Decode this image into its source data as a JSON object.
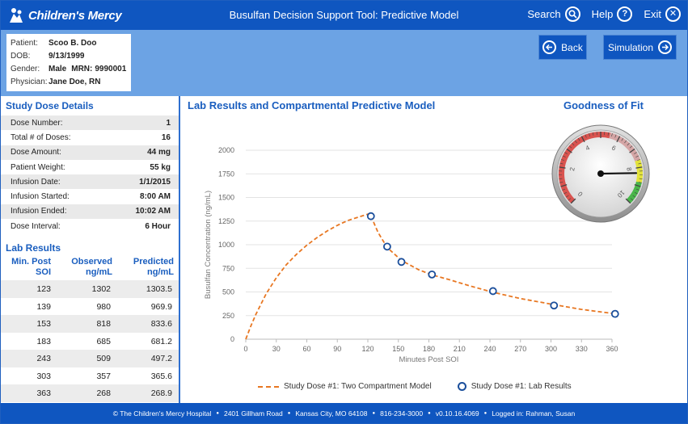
{
  "header": {
    "logo_text": "Children's Mercy",
    "title": "Busulfan Decision Support Tool: Predictive Model",
    "search_label": "Search",
    "help_label": "Help",
    "exit_label": "Exit"
  },
  "patient": {
    "patient_label": "Patient:",
    "patient_value": "Scoo B. Doo",
    "dob_label": "DOB:",
    "dob_value": "9/13/1999",
    "gender_label": "Gender:",
    "gender_value": "Male",
    "mrn_label": "MRN:",
    "mrn_value": "9990001",
    "physician_label": "Physician:",
    "physician_value": "Jane Doe, RN"
  },
  "nav": {
    "back_label": "Back",
    "simulation_label": "Simulation"
  },
  "study_dose": {
    "title": "Study Dose Details",
    "rows": [
      {
        "label": "Dose Number:",
        "value": "1"
      },
      {
        "label": "Total # of Doses:",
        "value": "16"
      },
      {
        "label": "Dose Amount:",
        "value": "44 mg"
      },
      {
        "label": "Patient Weight:",
        "value": "55 kg"
      },
      {
        "label": "Infusion Date:",
        "value": "1/1/2015"
      },
      {
        "label": "Infusion Started:",
        "value": "8:00 AM"
      },
      {
        "label": "Infusion Ended:",
        "value": "10:02 AM"
      },
      {
        "label": "Dose Interval:",
        "value": "6 Hour"
      }
    ]
  },
  "lab_results": {
    "title": "Lab Results",
    "headers": {
      "min_post_1": "Min. Post",
      "min_post_2": "SOI",
      "observed_1": "Observed",
      "observed_2": "ng/mL",
      "predicted_1": "Predicted",
      "predicted_2": "ng/mL"
    },
    "rows": [
      {
        "min": "123",
        "observed": "1302",
        "predicted": "1303.5"
      },
      {
        "min": "139",
        "observed": "980",
        "predicted": "969.9"
      },
      {
        "min": "153",
        "observed": "818",
        "predicted": "833.6"
      },
      {
        "min": "183",
        "observed": "685",
        "predicted": "681.2"
      },
      {
        "min": "243",
        "observed": "509",
        "predicted": "497.2"
      },
      {
        "min": "303",
        "observed": "357",
        "predicted": "365.6"
      },
      {
        "min": "363",
        "observed": "268",
        "predicted": "268.9"
      }
    ]
  },
  "chart_title": "Lab Results and Compartmental Predictive Model",
  "gauge": {
    "title": "Goodness of Fit",
    "labels": [
      "0",
      "2",
      "4",
      "6",
      "8",
      "10"
    ],
    "value": 8.3
  },
  "chart_data": {
    "type": "line",
    "xlabel": "Minutes Post SOI",
    "ylabel": "Busulfan Concentration (ng/mL)",
    "xlim": [
      0,
      360
    ],
    "ylim": [
      0,
      2000
    ],
    "x_ticks": [
      0,
      30,
      60,
      90,
      120,
      150,
      180,
      210,
      240,
      270,
      300,
      330,
      360
    ],
    "y_ticks": [
      0,
      250,
      500,
      750,
      1000,
      1250,
      1500,
      1750,
      2000
    ],
    "series": [
      {
        "name": "Study Dose #1: Two Compartment Model",
        "style": "dashed-line",
        "color": "#e87722",
        "x": [
          0,
          5,
          10,
          20,
          30,
          40,
          50,
          60,
          70,
          80,
          90,
          100,
          110,
          122,
          130,
          139,
          153,
          170,
          183,
          200,
          220,
          243,
          270,
          303,
          330,
          363
        ],
        "y": [
          0,
          140,
          265,
          480,
          650,
          790,
          900,
          995,
          1075,
          1145,
          1205,
          1255,
          1290,
          1330,
          1130,
          970,
          834,
          735,
          681,
          630,
          565,
          497,
          430,
          366,
          315,
          269
        ]
      },
      {
        "name": "Study Dose #1: Lab Results",
        "style": "circle-markers",
        "color": "#1a4e9b",
        "x": [
          123,
          139,
          153,
          183,
          243,
          303,
          363
        ],
        "y": [
          1302,
          980,
          818,
          685,
          509,
          357,
          268
        ]
      }
    ]
  },
  "footer": {
    "copyright": "© The Children's Mercy Hospital",
    "address": "2401 Gillham Road",
    "city": "Kansas City, MO 64108",
    "phone": "816-234-3000",
    "version": "v0.10.16.4069",
    "logged_in": "Logged in: Rahman, Susan"
  }
}
